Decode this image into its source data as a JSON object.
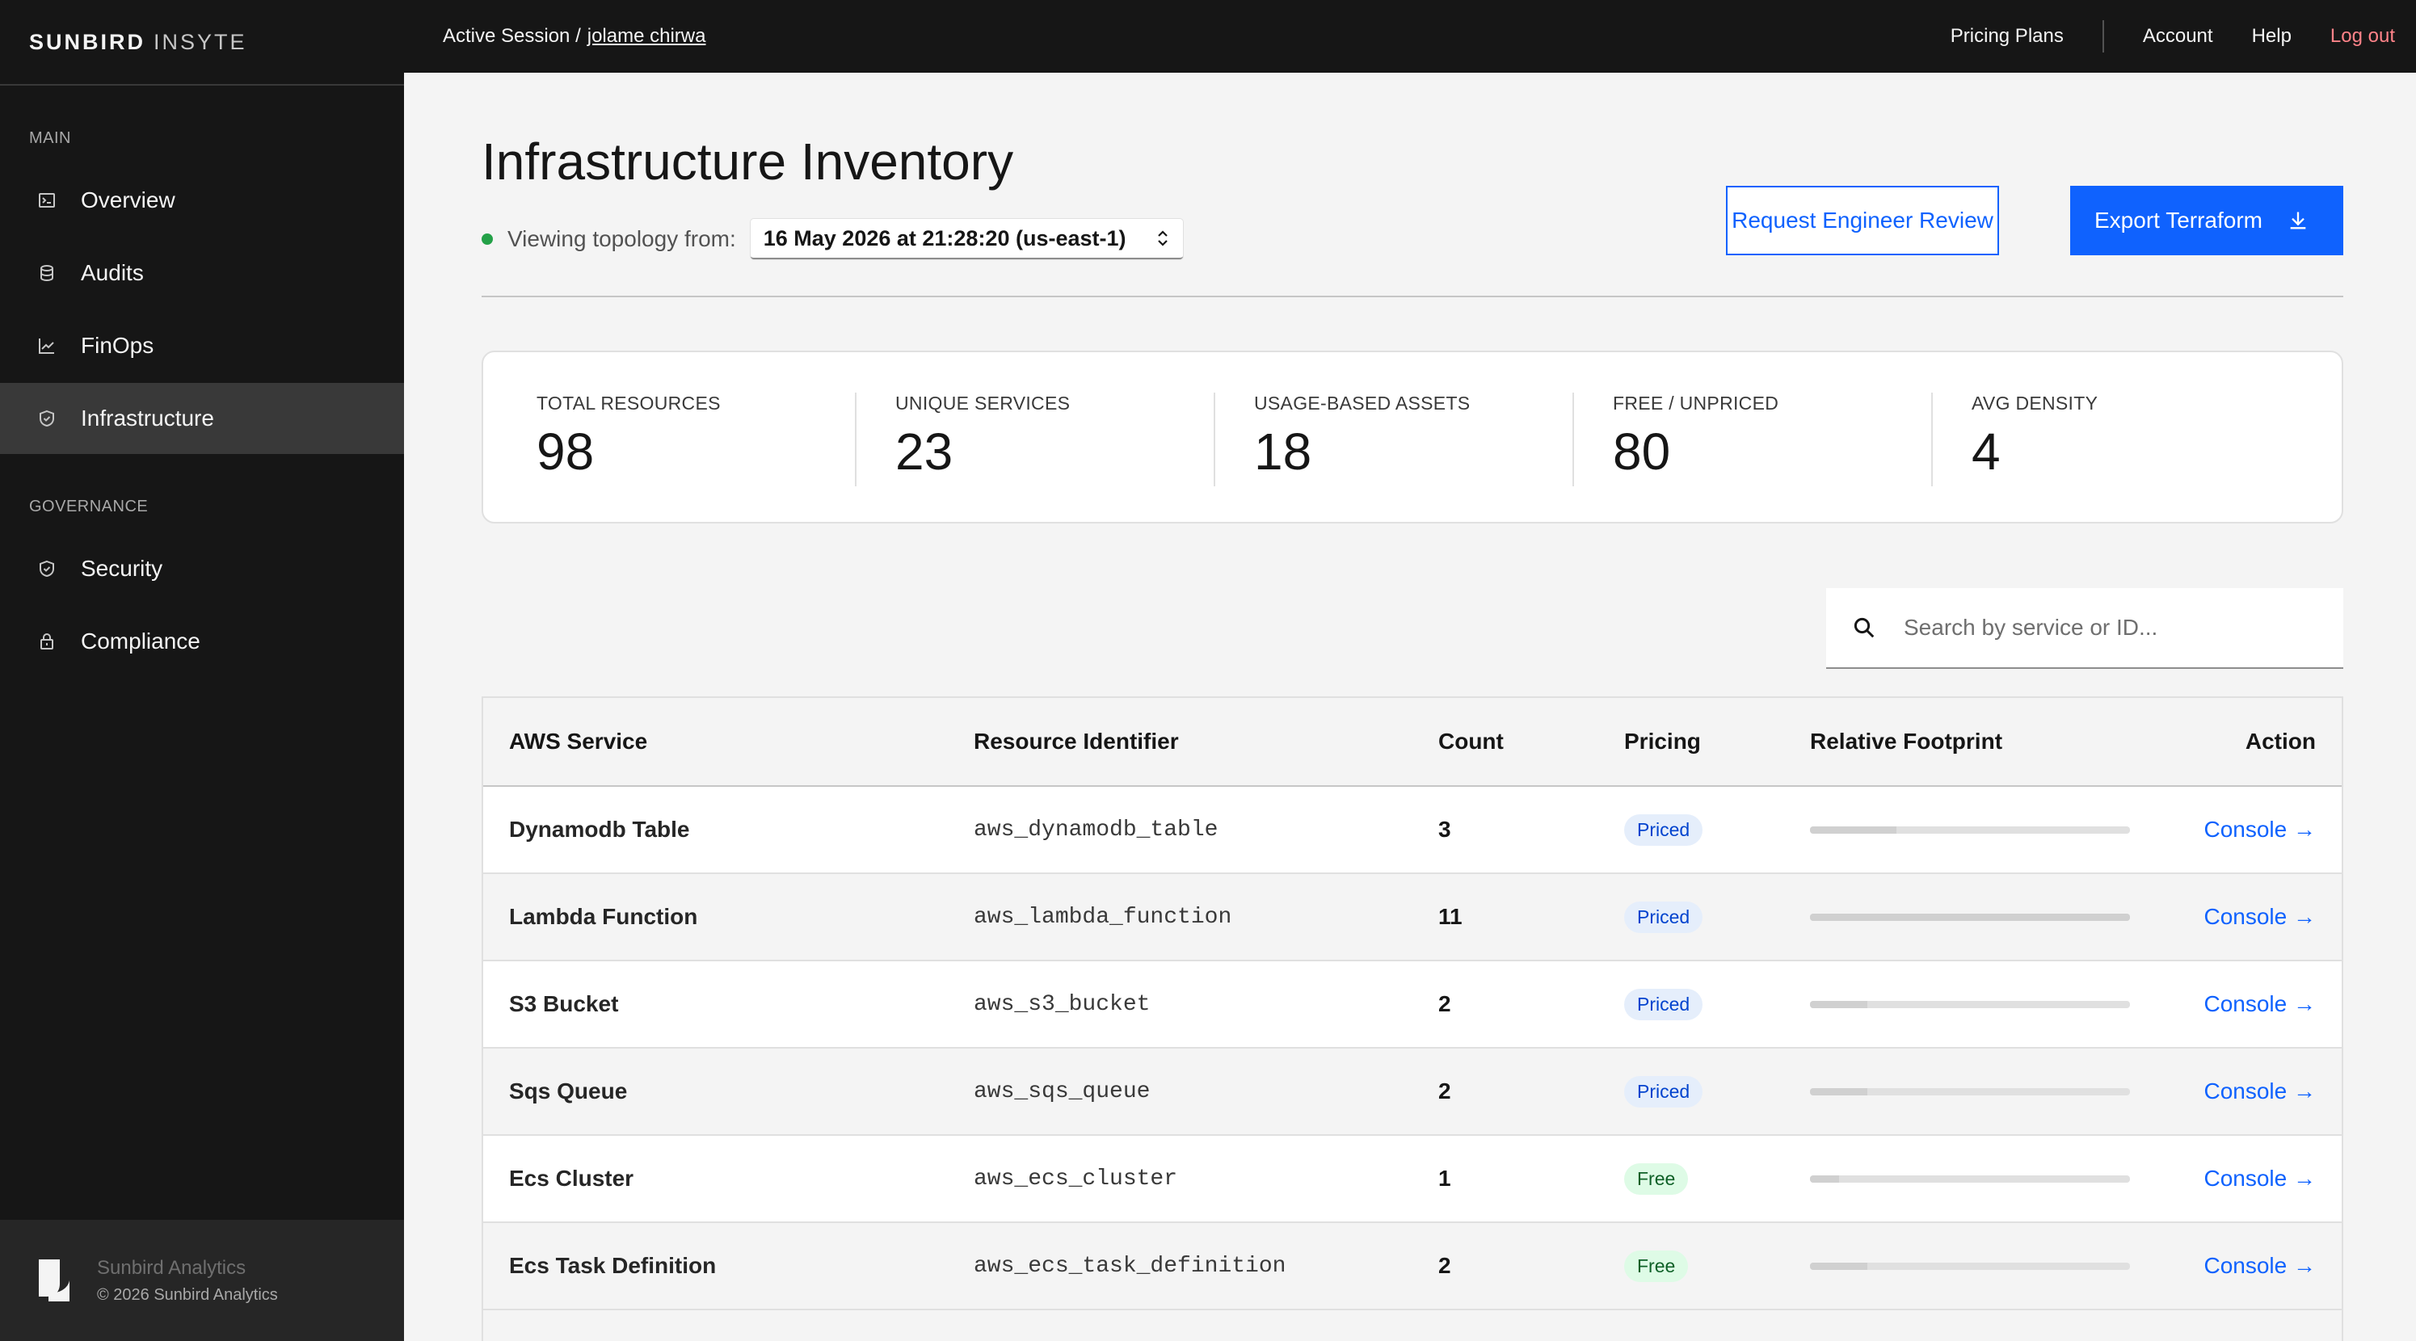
{
  "brand": {
    "bold": "SUNBIRD",
    "light": "INSYTE"
  },
  "topbar": {
    "session_label": "Active Session /",
    "user": "jolame chirwa",
    "links": {
      "pricing": "Pricing Plans",
      "account": "Account",
      "help": "Help",
      "logout": "Log out"
    }
  },
  "sidebar": {
    "sections": {
      "main": "MAIN",
      "governance": "GOVERNANCE"
    },
    "items": [
      {
        "label": "Overview",
        "icon": "terminal-icon"
      },
      {
        "label": "Audits",
        "icon": "database-icon"
      },
      {
        "label": "FinOps",
        "icon": "chart-icon"
      },
      {
        "label": "Infrastructure",
        "icon": "shield-icon",
        "active": true
      },
      {
        "label": "Security",
        "icon": "shield-icon"
      },
      {
        "label": "Compliance",
        "icon": "lock-icon"
      }
    ],
    "footer": {
      "company": "Sunbird Analytics",
      "copyright": "© 2026 Sunbird Analytics"
    }
  },
  "page": {
    "title": "Infrastructure Inventory",
    "topology_label": "Viewing topology from:",
    "topology_value": "16 May 2026 at 21:28:20 (us-east-1)",
    "buttons": {
      "review": "Request Engineer Review",
      "export": "Export Terraform"
    }
  },
  "stats": [
    {
      "label": "TOTAL RESOURCES",
      "value": "98"
    },
    {
      "label": "UNIQUE SERVICES",
      "value": "23"
    },
    {
      "label": "USAGE-BASED ASSETS",
      "value": "18"
    },
    {
      "label": "FREE / UNPRICED",
      "value": "80"
    },
    {
      "label": "AVG DENSITY",
      "value": "4"
    }
  ],
  "search": {
    "placeholder": "Search by service or ID..."
  },
  "table": {
    "headers": {
      "service": "AWS Service",
      "identifier": "Resource Identifier",
      "count": "Count",
      "pricing": "Pricing",
      "footprint": "Relative Footprint",
      "action": "Action"
    },
    "rows": [
      {
        "service": "Dynamodb Table",
        "identifier": "aws_dynamodb_table",
        "count": "3",
        "pricing": "Priced",
        "footprint": 0.27,
        "action": "Console →"
      },
      {
        "service": "Lambda Function",
        "identifier": "aws_lambda_function",
        "count": "11",
        "pricing": "Priced",
        "footprint": 1.0,
        "action": "Console →"
      },
      {
        "service": "S3 Bucket",
        "identifier": "aws_s3_bucket",
        "count": "2",
        "pricing": "Priced",
        "footprint": 0.18,
        "action": "Console →"
      },
      {
        "service": "Sqs Queue",
        "identifier": "aws_sqs_queue",
        "count": "2",
        "pricing": "Priced",
        "footprint": 0.18,
        "action": "Console →"
      },
      {
        "service": "Ecs Cluster",
        "identifier": "aws_ecs_cluster",
        "count": "1",
        "pricing": "Free",
        "footprint": 0.09,
        "action": "Console →"
      },
      {
        "service": "Ecs Task Definition",
        "identifier": "aws_ecs_task_definition",
        "count": "2",
        "pricing": "Free",
        "footprint": 0.18,
        "action": "Console →"
      }
    ]
  }
}
